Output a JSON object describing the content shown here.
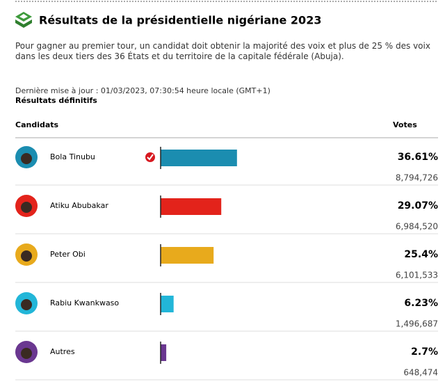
{
  "header": {
    "title": "Résultats de la présidentielle nigériane 2023",
    "description": "Pour gagner au premier tour, un candidat doit obtenir la majorité des voix et plus de 25 % des voix dans les deux tiers des 36 États et du territoire de la capitale fédérale (Abuja).",
    "updated": "Dernière mise à jour : 01/03/2023, 07:30:54 heure locale (GMT+1)",
    "status": "Résultats définitifs"
  },
  "chart_data": {
    "type": "bar",
    "category_header": "Candidats",
    "value_header": "Votes",
    "categories": [
      "Bola Tinubu",
      "Atiku Abubakar",
      "Peter Obi",
      "Rabiu Kwankwaso",
      "Autres"
    ],
    "values": [
      36.61,
      29.07,
      25.4,
      6.23,
      2.7
    ],
    "value_labels": [
      "36.61%",
      "29.07%",
      "25.4%",
      "6.23%",
      "2.7%"
    ],
    "votes": [
      8794726,
      6984520,
      6101533,
      1496687,
      648474
    ],
    "vote_labels": [
      "8,794,726",
      "6,984,520",
      "6,101,533",
      "1,496,687",
      "648,474"
    ],
    "colors": [
      "#1b8db0",
      "#e3231b",
      "#e8aa1c",
      "#22b6d8",
      "#6a3790"
    ],
    "xlim": [
      0,
      100
    ]
  }
}
